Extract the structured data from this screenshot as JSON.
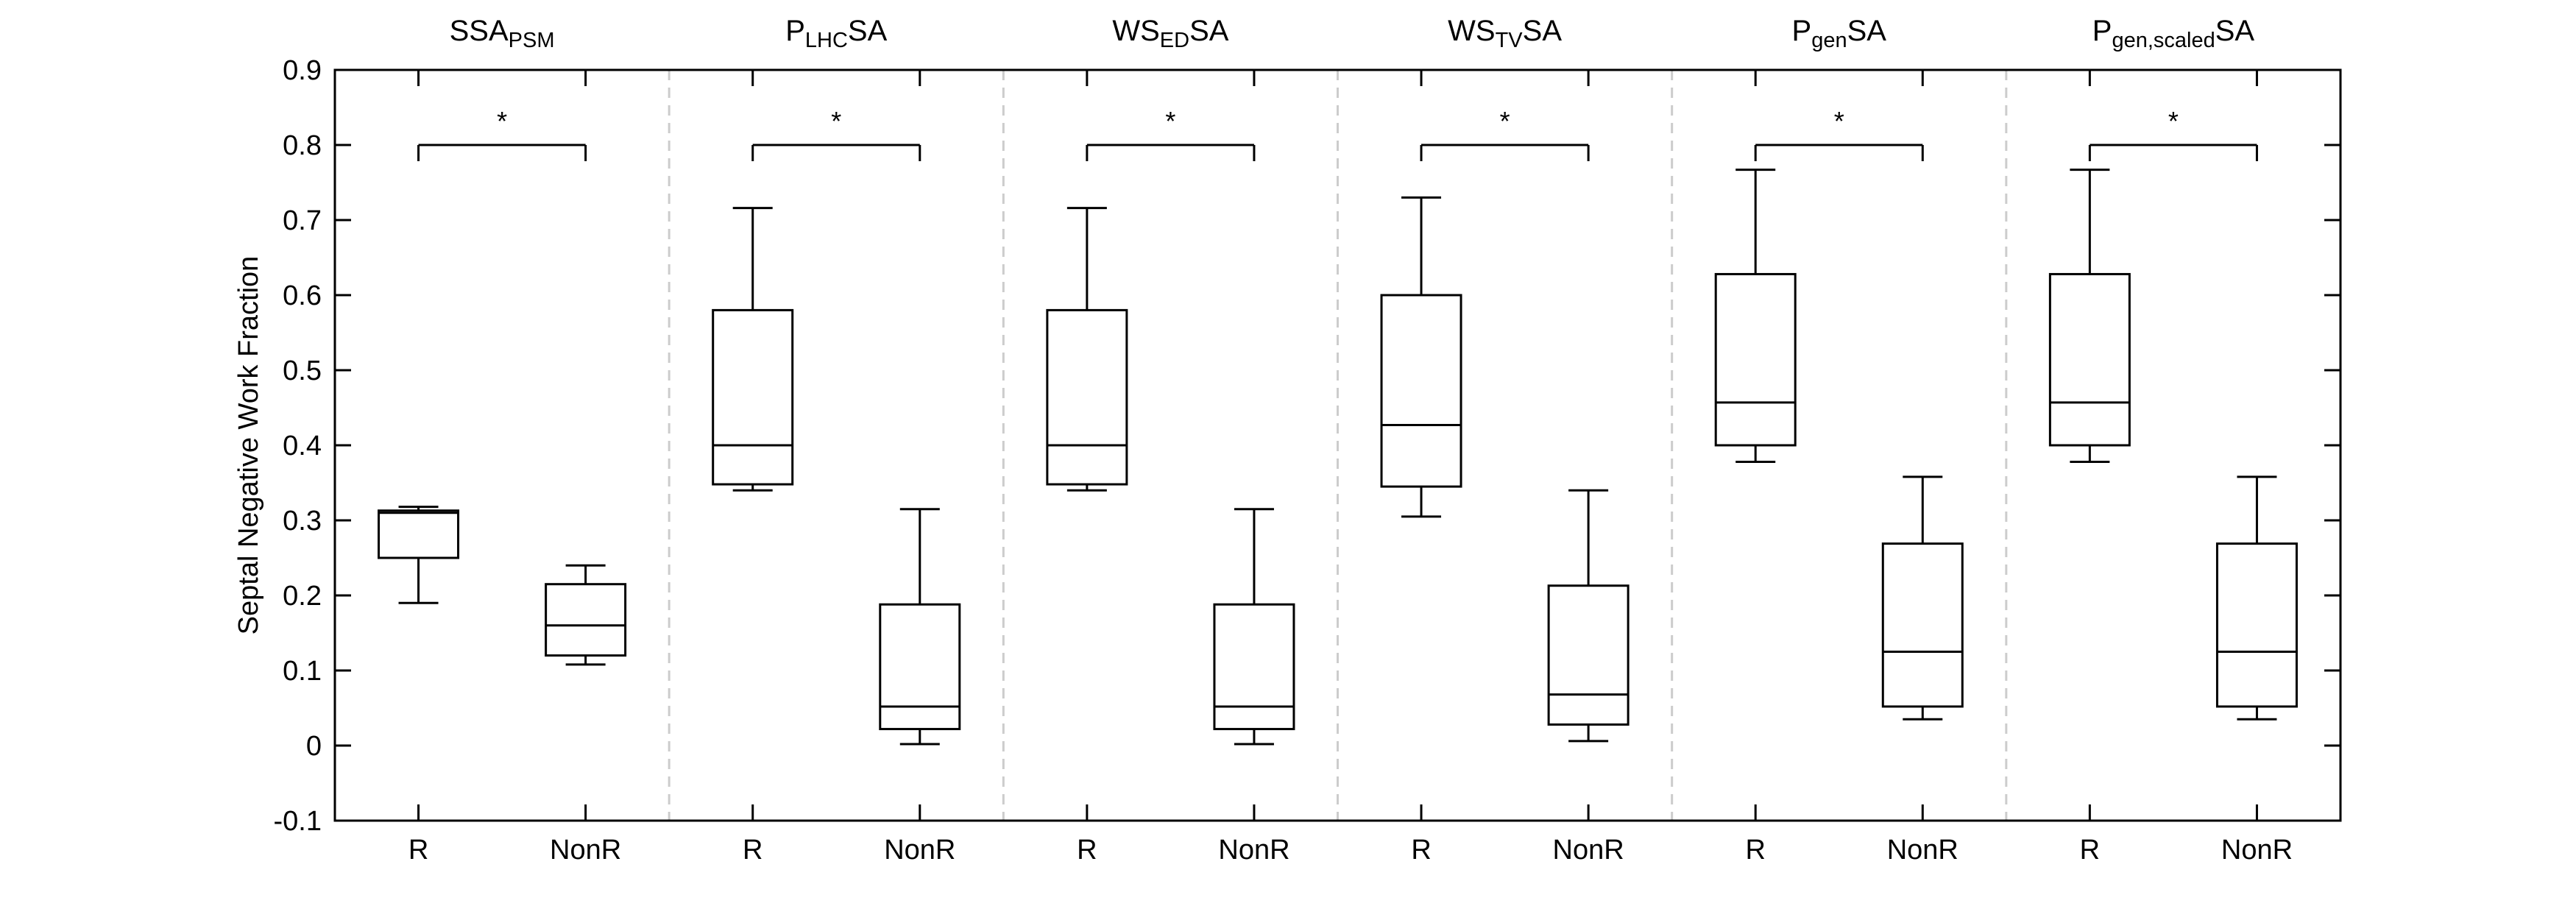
{
  "chart_data": {
    "type": "box",
    "ylabel": "Septal Negative Work Fraction",
    "ylim": [
      -0.1,
      0.9
    ],
    "yticks": [
      -0.1,
      0,
      0.1,
      0.2,
      0.3,
      0.4,
      0.5,
      0.6,
      0.7,
      0.8,
      0.9
    ],
    "ytick_labels": [
      "-0.1",
      "0",
      "0.1",
      "0.2",
      "0.3",
      "0.4",
      "0.5",
      "0.6",
      "0.7",
      "0.8",
      "0.9"
    ],
    "categories": [
      "R",
      "NonR"
    ],
    "significance_marker": "*",
    "significance_level": 0.8,
    "panels": [
      {
        "title_main": "SSA",
        "title_sub": "PSM",
        "title_suffix": "",
        "boxes": [
          {
            "category": "R",
            "min": 0.19,
            "q1": 0.25,
            "median": 0.31,
            "q3": 0.313,
            "max": 0.318
          },
          {
            "category": "NonR",
            "min": 0.108,
            "q1": 0.12,
            "median": 0.16,
            "q3": 0.215,
            "max": 0.24
          }
        ]
      },
      {
        "title_main": "P",
        "title_sub": "LHC",
        "title_suffix": "SA",
        "boxes": [
          {
            "category": "R",
            "min": 0.34,
            "q1": 0.348,
            "median": 0.4,
            "q3": 0.58,
            "max": 0.716
          },
          {
            "category": "NonR",
            "min": 0.002,
            "q1": 0.022,
            "median": 0.052,
            "q3": 0.188,
            "max": 0.315
          }
        ]
      },
      {
        "title_main": "WS",
        "title_sub": "ED",
        "title_suffix": "SA",
        "boxes": [
          {
            "category": "R",
            "min": 0.34,
            "q1": 0.348,
            "median": 0.4,
            "q3": 0.58,
            "max": 0.716
          },
          {
            "category": "NonR",
            "min": 0.002,
            "q1": 0.022,
            "median": 0.052,
            "q3": 0.188,
            "max": 0.315
          }
        ]
      },
      {
        "title_main": "WS",
        "title_sub": "TV",
        "title_suffix": "SA",
        "boxes": [
          {
            "category": "R",
            "min": 0.305,
            "q1": 0.345,
            "median": 0.427,
            "q3": 0.6,
            "max": 0.73
          },
          {
            "category": "NonR",
            "min": 0.006,
            "q1": 0.028,
            "median": 0.068,
            "q3": 0.213,
            "max": 0.34
          }
        ]
      },
      {
        "title_main": "P",
        "title_sub": "gen",
        "title_suffix": "SA",
        "boxes": [
          {
            "category": "R",
            "min": 0.378,
            "q1": 0.4,
            "median": 0.457,
            "q3": 0.628,
            "max": 0.767
          },
          {
            "category": "NonR",
            "min": 0.035,
            "q1": 0.052,
            "median": 0.125,
            "q3": 0.269,
            "max": 0.358
          }
        ]
      },
      {
        "title_main": "P",
        "title_sub": "gen,scaled",
        "title_suffix": "SA",
        "boxes": [
          {
            "category": "R",
            "min": 0.378,
            "q1": 0.4,
            "median": 0.457,
            "q3": 0.628,
            "max": 0.767
          },
          {
            "category": "NonR",
            "min": 0.035,
            "q1": 0.052,
            "median": 0.125,
            "q3": 0.269,
            "max": 0.358
          }
        ]
      }
    ],
    "grid": false,
    "panel_separators": "dashed vertical lines",
    "colors": {
      "box": "#000000",
      "separator": "#cccccc",
      "background": "#ffffff"
    }
  }
}
